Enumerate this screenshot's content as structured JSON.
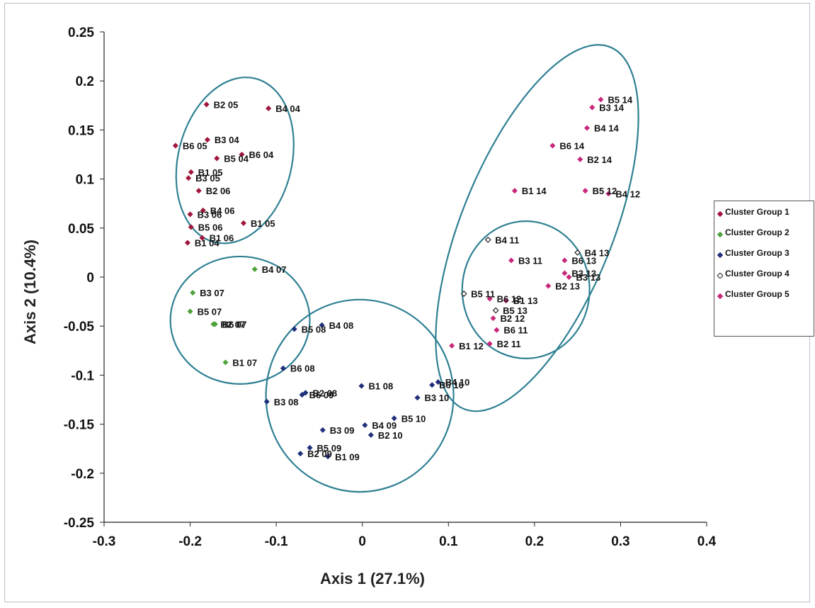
{
  "chart_data": {
    "type": "scatter",
    "xlabel": "Axis 1 (27.1%)",
    "ylabel": "Axis 2 (10.4%)",
    "xlim": [
      -0.3,
      0.4
    ],
    "ylim": [
      -0.25,
      0.25
    ],
    "x_ticks": [
      "-0.3",
      "-0.2",
      "-0.1",
      "0",
      "0.1",
      "0.2",
      "0.3",
      "0.4"
    ],
    "y_ticks": [
      "0.25",
      "0.2",
      "0.15",
      "0.1",
      "0.05",
      "0",
      "-0.05",
      "-0.1",
      "-0.15",
      "-0.2",
      "-0.25"
    ],
    "grid": false,
    "legend_position": "right",
    "series": [
      {
        "name": "Cluster Group 1",
        "color": "#a0163c",
        "marker": "diamond-filled",
        "points": [
          {
            "label": "B2 05",
            "x": -0.181,
            "y": 0.176
          },
          {
            "label": "B4 04",
            "x": -0.109,
            "y": 0.172
          },
          {
            "label": "B3 04",
            "x": -0.18,
            "y": 0.14
          },
          {
            "label": "B6 05",
            "x": -0.217,
            "y": 0.134
          },
          {
            "label": "B5 04",
            "x": -0.169,
            "y": 0.121
          },
          {
            "label": "B6 04",
            "x": -0.14,
            "y": 0.125
          },
          {
            "label": "B3 05",
            "x": -0.202,
            "y": 0.101
          },
          {
            "label": "B1 05",
            "x": -0.199,
            "y": 0.107
          },
          {
            "label": "B2 06",
            "x": -0.19,
            "y": 0.088
          },
          {
            "label": "B3 06",
            "x": -0.2,
            "y": 0.064
          },
          {
            "label": "B4 06",
            "x": -0.185,
            "y": 0.068
          },
          {
            "label": "B1 05",
            "x": -0.138,
            "y": 0.055
          },
          {
            "label": "B5 06",
            "x": -0.199,
            "y": 0.051
          },
          {
            "label": "B1 06",
            "x": -0.186,
            "y": 0.04
          },
          {
            "label": "B1 04",
            "x": -0.203,
            "y": 0.035
          }
        ]
      },
      {
        "name": "Cluster Group 2",
        "color": "#4fa33c",
        "marker": "diamond-filled",
        "points": [
          {
            "label": "B4 07",
            "x": -0.125,
            "y": 0.008
          },
          {
            "label": "B3 07",
            "x": -0.197,
            "y": -0.016
          },
          {
            "label": "B5 07",
            "x": -0.2,
            "y": -0.035
          },
          {
            "label": "B2 07",
            "x": -0.173,
            "y": -0.048
          },
          {
            "label": "B6 07",
            "x": -0.171,
            "y": -0.048
          },
          {
            "label": "B1 07",
            "x": -0.159,
            "y": -0.087
          }
        ]
      },
      {
        "name": "Cluster Group 3",
        "color": "#1f2f7a",
        "marker": "diamond-filled",
        "points": [
          {
            "label": "B5 08",
            "x": -0.079,
            "y": -0.053
          },
          {
            "label": "B4 08",
            "x": -0.047,
            "y": -0.049
          },
          {
            "label": "B6 08",
            "x": -0.092,
            "y": -0.093
          },
          {
            "label": "B1 08",
            "x": -0.001,
            "y": -0.111
          },
          {
            "label": "B2 08",
            "x": -0.066,
            "y": -0.118
          },
          {
            "label": "B6 09",
            "x": -0.07,
            "y": -0.12
          },
          {
            "label": "B3 08",
            "x": -0.111,
            "y": -0.127
          },
          {
            "label": "B6 10",
            "x": 0.081,
            "y": -0.11
          },
          {
            "label": "B4 10",
            "x": 0.088,
            "y": -0.107
          },
          {
            "label": "B3 10",
            "x": 0.064,
            "y": -0.123
          },
          {
            "label": "B5 10",
            "x": 0.037,
            "y": -0.144
          },
          {
            "label": "B3 09",
            "x": -0.046,
            "y": -0.156
          },
          {
            "label": "B4 09",
            "x": 0.003,
            "y": -0.151
          },
          {
            "label": "B2 10",
            "x": 0.01,
            "y": -0.161
          },
          {
            "label": "B5 09",
            "x": -0.061,
            "y": -0.174
          },
          {
            "label": "B2 09",
            "x": -0.072,
            "y": -0.18
          },
          {
            "label": "B1 09",
            "x": -0.04,
            "y": -0.183
          }
        ]
      },
      {
        "name": "Cluster Group 4",
        "color": "#222222",
        "marker": "diamond-open",
        "points": [
          {
            "label": "B4 11",
            "x": 0.146,
            "y": 0.038
          },
          {
            "label": "B4 13",
            "x": 0.25,
            "y": 0.025
          },
          {
            "label": "B5 11",
            "x": 0.118,
            "y": -0.017
          },
          {
            "label": "B5 13",
            "x": 0.155,
            "y": -0.034
          }
        ]
      },
      {
        "name": "Cluster Group 5",
        "color": "#c8287a",
        "marker": "diamond-filled",
        "points": [
          {
            "label": "B5 14",
            "x": 0.277,
            "y": 0.181
          },
          {
            "label": "B3 14",
            "x": 0.267,
            "y": 0.173
          },
          {
            "label": "B4 14",
            "x": 0.261,
            "y": 0.152
          },
          {
            "label": "B6 14",
            "x": 0.221,
            "y": 0.134
          },
          {
            "label": "B2 14",
            "x": 0.253,
            "y": 0.12
          },
          {
            "label": "B1 14",
            "x": 0.177,
            "y": 0.088
          },
          {
            "label": "B5 12",
            "x": 0.259,
            "y": 0.088
          },
          {
            "label": "B4 12",
            "x": 0.286,
            "y": 0.085
          },
          {
            "label": "B3 11",
            "x": 0.173,
            "y": 0.017
          },
          {
            "label": "B6 13",
            "x": 0.235,
            "y": 0.017
          },
          {
            "label": "B3 13",
            "x": 0.235,
            "y": 0.004
          },
          {
            "label": "B3 13",
            "x": 0.24,
            "y": 0.0
          },
          {
            "label": "B2 13",
            "x": 0.216,
            "y": -0.009
          },
          {
            "label": "B6 12",
            "x": 0.148,
            "y": -0.022
          },
          {
            "label": "B1 13",
            "x": 0.167,
            "y": -0.024
          },
          {
            "label": "B2 12",
            "x": 0.152,
            "y": -0.042
          },
          {
            "label": "B6 11",
            "x": 0.156,
            "y": -0.054
          },
          {
            "label": "B2 11",
            "x": 0.148,
            "y": -0.068
          },
          {
            "label": "B1 12",
            "x": 0.104,
            "y": -0.07
          }
        ]
      }
    ],
    "ellipses": [
      {
        "cx": -0.148,
        "cy": 0.119,
        "rx": 0.066,
        "ry": 0.086,
        "angle_deg": 14
      },
      {
        "cx": -0.142,
        "cy": -0.044,
        "rx": 0.081,
        "ry": 0.065,
        "angle_deg": 0
      },
      {
        "cx": -0.003,
        "cy": -0.121,
        "rx": 0.109,
        "ry": 0.098,
        "angle_deg": 0
      },
      {
        "cx": 0.19,
        "cy": -0.013,
        "rx": 0.074,
        "ry": 0.07,
        "angle_deg": 0
      },
      {
        "cx": 0.203,
        "cy": 0.05,
        "rx": 0.088,
        "ry": 0.199,
        "angle_deg": 22
      }
    ],
    "ellipse_color": "#2f8093"
  }
}
